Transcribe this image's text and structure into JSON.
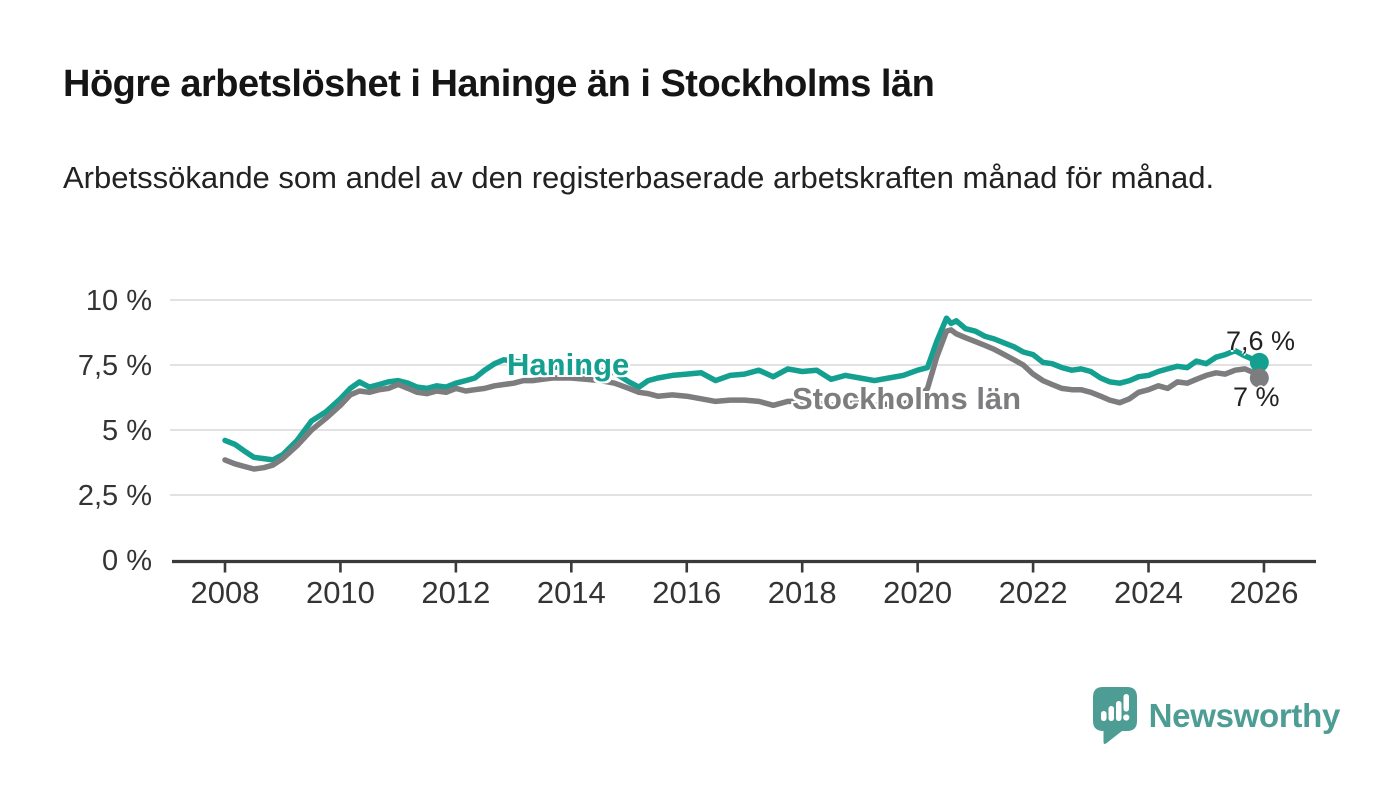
{
  "header": {
    "title": "Högre arbetslöshet i Haninge än i Stockholms län",
    "subtitle": "Arbetssökande som andel av den registerbaserade arbetskraften månad för månad."
  },
  "chart_data": {
    "type": "line",
    "title": "Högre arbetslöshet i Haninge än i Stockholms län",
    "xlabel": "",
    "ylabel": "",
    "unit": "%",
    "grid": "horizontal",
    "xlim": [
      2007.05,
      2026.9
    ],
    "ylim": [
      0,
      10.5
    ],
    "x_ticks": [
      2008,
      2010,
      2012,
      2014,
      2016,
      2018,
      2020,
      2022,
      2024,
      2026
    ],
    "y_ticks": [
      {
        "value": 0,
        "label": "0 %"
      },
      {
        "value": 2.5,
        "label": "2,5 %"
      },
      {
        "value": 5,
        "label": "5 %"
      },
      {
        "value": 7.5,
        "label": "7,5 %"
      },
      {
        "value": 10,
        "label": "10 %"
      }
    ],
    "x": [
      2008.0,
      2008.17,
      2008.33,
      2008.5,
      2008.67,
      2008.83,
      2009.0,
      2009.25,
      2009.5,
      2009.75,
      2010.0,
      2010.17,
      2010.33,
      2010.5,
      2010.67,
      2010.83,
      2011.0,
      2011.17,
      2011.33,
      2011.5,
      2011.67,
      2011.83,
      2012.0,
      2012.17,
      2012.33,
      2012.5,
      2012.67,
      2012.83,
      2013.0,
      2013.17,
      2013.33,
      2013.5,
      2013.67,
      2013.83,
      2014.0,
      2014.25,
      2014.5,
      2014.75,
      2015.0,
      2015.17,
      2015.33,
      2015.5,
      2015.75,
      2016.0,
      2016.25,
      2016.5,
      2016.75,
      2017.0,
      2017.25,
      2017.5,
      2017.75,
      2018.0,
      2018.25,
      2018.5,
      2018.75,
      2019.0,
      2019.25,
      2019.5,
      2019.75,
      2020.0,
      2020.17,
      2020.33,
      2020.5,
      2020.58,
      2020.67,
      2020.83,
      2021.0,
      2021.17,
      2021.33,
      2021.5,
      2021.67,
      2021.83,
      2022.0,
      2022.17,
      2022.33,
      2022.5,
      2022.67,
      2022.83,
      2023.0,
      2023.17,
      2023.33,
      2023.5,
      2023.67,
      2023.83,
      2024.0,
      2024.17,
      2024.33,
      2024.5,
      2024.67,
      2024.83,
      2025.0,
      2025.17,
      2025.33,
      2025.5,
      2025.67,
      2025.83,
      2025.92
    ],
    "series": [
      {
        "name": "Haninge",
        "color": "#14a090",
        "end_label": "7,6 %",
        "end_value": 7.6,
        "values": [
          4.6,
          4.45,
          4.2,
          3.95,
          3.9,
          3.85,
          4.05,
          4.6,
          5.35,
          5.7,
          6.2,
          6.6,
          6.85,
          6.65,
          6.75,
          6.85,
          6.9,
          6.8,
          6.65,
          6.6,
          6.7,
          6.65,
          6.8,
          6.9,
          7.0,
          7.3,
          7.55,
          7.7,
          7.65,
          7.6,
          7.5,
          7.45,
          7.4,
          7.45,
          7.35,
          7.25,
          7.3,
          7.2,
          6.85,
          6.65,
          6.9,
          7.0,
          7.1,
          7.15,
          7.2,
          6.9,
          7.1,
          7.15,
          7.3,
          7.05,
          7.35,
          7.25,
          7.3,
          6.95,
          7.1,
          7.0,
          6.9,
          7.0,
          7.1,
          7.3,
          7.4,
          8.4,
          9.3,
          9.1,
          9.2,
          8.9,
          8.8,
          8.6,
          8.5,
          8.35,
          8.2,
          8.0,
          7.9,
          7.6,
          7.55,
          7.4,
          7.3,
          7.35,
          7.25,
          7.0,
          6.85,
          6.8,
          6.9,
          7.05,
          7.1,
          7.25,
          7.35,
          7.45,
          7.4,
          7.65,
          7.55,
          7.8,
          7.9,
          8.05,
          7.85,
          7.7,
          7.6
        ]
      },
      {
        "name": "Stockholms län",
        "color": "#7d7d80",
        "end_label": "7 %",
        "end_value": 7.0,
        "values": [
          3.85,
          3.7,
          3.6,
          3.5,
          3.55,
          3.65,
          3.9,
          4.4,
          5.0,
          5.45,
          5.95,
          6.35,
          6.5,
          6.45,
          6.55,
          6.6,
          6.75,
          6.6,
          6.45,
          6.4,
          6.5,
          6.45,
          6.6,
          6.5,
          6.55,
          6.6,
          6.7,
          6.75,
          6.8,
          6.9,
          6.9,
          6.95,
          7.0,
          7.0,
          7.0,
          6.95,
          6.9,
          6.8,
          6.6,
          6.45,
          6.4,
          6.3,
          6.35,
          6.3,
          6.2,
          6.1,
          6.15,
          6.15,
          6.1,
          5.95,
          6.1,
          6.1,
          6.05,
          5.95,
          6.0,
          6.05,
          5.95,
          6.0,
          6.0,
          6.2,
          6.6,
          7.8,
          8.8,
          8.85,
          8.7,
          8.55,
          8.4,
          8.25,
          8.1,
          7.9,
          7.7,
          7.5,
          7.15,
          6.9,
          6.75,
          6.6,
          6.55,
          6.55,
          6.45,
          6.3,
          6.15,
          6.05,
          6.2,
          6.45,
          6.55,
          6.7,
          6.6,
          6.85,
          6.8,
          6.95,
          7.1,
          7.2,
          7.15,
          7.3,
          7.35,
          7.2,
          7.0
        ]
      }
    ],
    "colors": {
      "grid": "#d9d9d9",
      "axis": "#3a3a3a",
      "tick_label": "#343434"
    }
  },
  "branding": {
    "name": "Newsworthy",
    "color": "#4d9d95"
  }
}
